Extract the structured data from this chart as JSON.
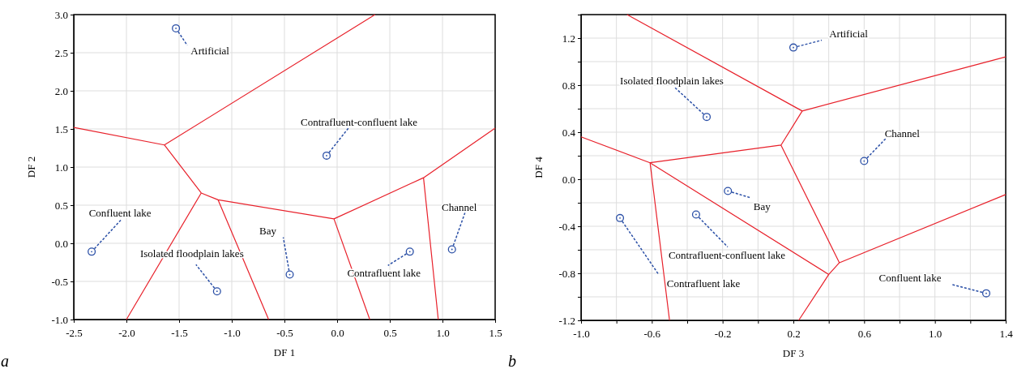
{
  "chart_data": [
    {
      "type": "scatter",
      "xlabel": "DF 1",
      "ylabel": "DF 2",
      "xlim": [
        -2.5,
        1.5
      ],
      "ylim": [
        -1.0,
        3.0
      ],
      "xticks": [
        {
          "value": -2.5,
          "label": "-2.5"
        },
        {
          "value": -2,
          "label": "-2.0"
        },
        {
          "value": -1.5,
          "label": "-1.5"
        },
        {
          "value": -1,
          "label": "-1.0"
        },
        {
          "value": -0.5,
          "label": "-0.5"
        },
        {
          "value": 0,
          "label": "0.0"
        },
        0.5,
        {
          "value": 1,
          "label": "1.0"
        },
        1.5
      ],
      "yticks": [
        {
          "value": -1,
          "label": "-1.0"
        },
        {
          "value": -0.5,
          "label": "-0.5"
        },
        {
          "value": 0,
          "label": "0.0"
        },
        0.5,
        {
          "value": 1,
          "label": "1.0"
        },
        1.5,
        {
          "value": 2,
          "label": "2.0"
        },
        2.5,
        {
          "value": 3,
          "label": "3.0"
        }
      ],
      "grid": true,
      "series": [
        {
          "type": "scatter",
          "marker": "circle",
          "color": "#2a4fa6",
          "x": [
            -1.53,
            -0.1,
            -2.33,
            -1.14,
            -0.45,
            0.69,
            1.09
          ],
          "values": [
            2.82,
            1.15,
            -0.11,
            -0.63,
            -0.41,
            -0.11,
            -0.08
          ]
        },
        {
          "type": "line",
          "color": "#e8202a",
          "x": [
            -2.5,
            -1.64,
            0.36,
            null,
            -1.64,
            -1.29,
            -1.13,
            -0.03,
            0.82,
            1.5,
            null,
            -1.29,
            -2.0,
            null,
            -1.13,
            -0.65,
            null,
            -0.03,
            0.31,
            null,
            0.82,
            0.96
          ],
          "values": [
            1.52,
            1.29,
            3.0,
            null,
            1.29,
            0.66,
            0.57,
            0.32,
            0.86,
            1.51,
            null,
            0.66,
            -1.0,
            null,
            0.57,
            -1.0,
            null,
            0.32,
            -1.0,
            null,
            0.86,
            -1.0
          ]
        }
      ],
      "annotations": [
        {
          "text": "Artificial",
          "x": -1.53,
          "y": 2.82
        },
        {
          "text": "Contrafluent-confluent lake",
          "x": -0.1,
          "y": 1.15
        },
        {
          "text": "Confluent lake",
          "x": -2.33,
          "y": -0.11
        },
        {
          "text": "Isolated floodplain lakes",
          "x": -1.14,
          "y": -0.63
        },
        {
          "text": "Bay",
          "x": -0.45,
          "y": -0.41
        },
        {
          "text": "Contrafluent lake",
          "x": 0.69,
          "y": -0.11
        },
        {
          "text": "Channel",
          "x": 1.09,
          "y": -0.08
        },
        "a"
      ]
    },
    {
      "type": "scatter",
      "xlabel": "DF 3",
      "ylabel": "DF 4",
      "xlim": [
        -1.0,
        1.4
      ],
      "ylim": [
        -1.2,
        1.4
      ],
      "xticks": [
        {
          "value": -1,
          "label": "-1.0"
        },
        {
          "value": -0.8,
          "label": null
        },
        {
          "value": -0.6,
          "label": "-0.6"
        },
        {
          "value": -0.4,
          "label": null
        },
        {
          "value": -0.2,
          "label": "-0.2"
        },
        {
          "value": 0,
          "label": null
        },
        0.2,
        {
          "value": 0.4,
          "label": null
        },
        0.6,
        {
          "value": 0.8,
          "label": null
        },
        {
          "value": 1,
          "label": "1.0"
        },
        {
          "value": 1.2,
          "label": null
        },
        1.4
      ],
      "yticks": [
        -1.2,
        {
          "value": -1,
          "label": null
        },
        -0.8,
        {
          "value": -0.6,
          "label": null
        },
        -0.4,
        {
          "value": -0.2,
          "label": null
        },
        {
          "value": 0,
          "label": "0.0"
        },
        {
          "value": 0.2,
          "label": null
        },
        0.4,
        {
          "value": 0.6,
          "label": null
        },
        0.8,
        {
          "value": 1,
          "label": null
        },
        1.2,
        {
          "value": 1.4,
          "label": null
        }
      ],
      "grid": true,
      "series": [
        {
          "type": "scatter",
          "marker": "circle",
          "color": "#2a4fa6",
          "x": [
            0.2,
            -0.29,
            0.6,
            -0.17,
            -0.35,
            -0.78,
            1.29
          ],
          "values": [
            1.12,
            0.53,
            0.155,
            -0.1,
            -0.3,
            -0.33,
            -0.97
          ]
        },
        {
          "type": "line",
          "color": "#e8202a",
          "x": [
            -0.74,
            0.25,
            1.4,
            null,
            0.25,
            0.13,
            -0.61,
            -1.0,
            null,
            -0.61,
            -0.5,
            null,
            -0.61,
            0.4,
            0.46,
            1.4,
            null,
            0.13,
            0.46,
            null,
            0.4,
            0.23
          ],
          "values": [
            1.4,
            0.58,
            1.04,
            null,
            0.58,
            0.29,
            0.14,
            0.36,
            null,
            0.14,
            -1.2,
            null,
            0.14,
            -0.81,
            -0.71,
            -0.13,
            null,
            0.29,
            -0.71,
            null,
            -0.81,
            -1.2
          ]
        }
      ],
      "annotations": [
        {
          "text": "Artificial",
          "x": 0.2,
          "y": 1.12
        },
        {
          "text": "Isolated floodplain lakes",
          "x": -0.29,
          "y": 0.53
        },
        {
          "text": "Channel",
          "x": 0.6,
          "y": 0.155
        },
        {
          "text": "Bay",
          "x": -0.17,
          "y": -0.1
        },
        {
          "text": "Contrafluent-confluent lake",
          "x": -0.35,
          "y": -0.3
        },
        {
          "text": "Contrafluent lake",
          "x": -0.78,
          "y": -0.33
        },
        {
          "text": "Confluent lake",
          "x": 1.29,
          "y": -0.97
        },
        "b"
      ]
    }
  ]
}
